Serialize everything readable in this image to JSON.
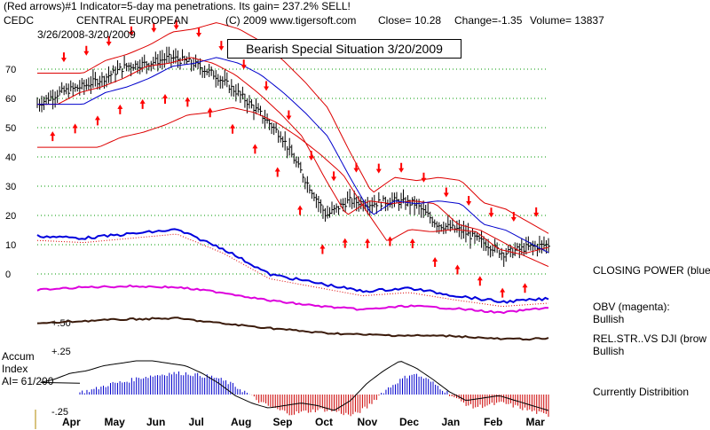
{
  "header": {
    "line1_left": "(Red arrows)#1 Indicator=5-day ma penetrations.  Its gain= 237.2% SELL!",
    "symbol": "CEDC",
    "company": "CENTRAL EUROPEAN",
    "copyright": "(C) 2009 www.tigersoft.com",
    "close": "Close=  10.28",
    "change": "Change=-1.35",
    "volume": "Volume=  13837",
    "date_range": "3/26/2008-3/20/2009"
  },
  "annotation": {
    "callout": "Bearish Special Situation 3/20/2009"
  },
  "indicators": {
    "closing_power": "CLOSING POWER (blue",
    "obv_label": "OBV (magenta):",
    "obv_state": "Bullish",
    "relstr_label": "REL.STR..VS DJI (brow",
    "relstr_state": "Bullish",
    "accum_status": "Currently Distribition",
    "accum_title_1": "Accum",
    "accum_title_2": "Index",
    "ai_value": "AI= 61/200"
  },
  "colors": {
    "price_bars": "#000000",
    "ma_red": "#dd0000",
    "ma_blue": "#0000cc",
    "closing_power": "#0000dd",
    "obv": "#dd00dd",
    "relstr": "#3a1a0a",
    "accum_positive": "#0000cc",
    "accum_negative": "#cc0000",
    "grid": "#009900",
    "arrow": "#ff0000"
  },
  "chart_data": {
    "type": "line",
    "ylim": [
      0,
      80
    ],
    "y_ticks": [
      "70",
      "60",
      "50",
      "40",
      "30",
      "20",
      "10",
      "0"
    ],
    "x_ticks": [
      "Apr",
      "May",
      "Jun",
      "Jul",
      "Aug",
      "Sep",
      "Oct",
      "Nov",
      "Dec",
      "Jan",
      "Feb",
      "Mar"
    ],
    "accum_ticks": [
      "+.50",
      "+.25",
      "-.25"
    ],
    "grid": true,
    "price_close": [
      {
        "x": "Apr",
        "y": 58
      },
      {
        "x": "Apr",
        "y": 62
      },
      {
        "x": "May",
        "y": 64
      },
      {
        "x": "May",
        "y": 67
      },
      {
        "x": "Jun",
        "y": 71
      },
      {
        "x": "Jun",
        "y": 72
      },
      {
        "x": "Jul",
        "y": 74
      },
      {
        "x": "Jul",
        "y": 72
      },
      {
        "x": "Aug",
        "y": 68
      },
      {
        "x": "Aug",
        "y": 62
      },
      {
        "x": "Sep",
        "y": 55
      },
      {
        "x": "Sep",
        "y": 47
      },
      {
        "x": "Oct",
        "y": 33
      },
      {
        "x": "Oct",
        "y": 20
      },
      {
        "x": "Nov",
        "y": 25
      },
      {
        "x": "Nov",
        "y": 24
      },
      {
        "x": "Dec",
        "y": 25
      },
      {
        "x": "Dec",
        "y": 24
      },
      {
        "x": "Jan",
        "y": 17
      },
      {
        "x": "Jan",
        "y": 15
      },
      {
        "x": "Feb",
        "y": 11
      },
      {
        "x": "Feb",
        "y": 7
      },
      {
        "x": "Mar",
        "y": 9
      },
      {
        "x": "Mar",
        "y": 10
      }
    ],
    "series": [
      {
        "name": "CLOSING POWER (blue",
        "values": [
          0.74,
          0.72,
          0.76,
          0.8,
          0.62,
          0.38,
          0.3,
          0.22,
          0.25,
          0.18,
          0.12,
          0.15
        ]
      },
      {
        "name": "OBV (magenta)",
        "values": [
          0.55,
          0.6,
          0.62,
          0.6,
          0.5,
          0.35,
          0.25,
          0.18,
          0.25,
          0.2,
          0.12,
          0.22
        ]
      },
      {
        "name": "REL.STR..VS DJI (brow",
        "values": [
          0.6,
          0.66,
          0.7,
          0.72,
          0.6,
          0.5,
          0.4,
          0.35,
          0.33,
          0.32,
          0.25,
          0.26
        ]
      }
    ],
    "accum_index": [
      0.02,
      0.05,
      0.1,
      0.12,
      0.16,
      0.18,
      0.2,
      0.2,
      0.18,
      0.16,
      0.1,
      0.02,
      -0.08,
      -0.14,
      -0.18,
      -0.16,
      -0.14,
      -0.16,
      -0.2,
      -0.12,
      0.02,
      0.12,
      0.2,
      0.14,
      0.05,
      -0.05,
      -0.12,
      -0.1,
      -0.08,
      -0.12,
      -0.16,
      -0.2
    ]
  }
}
